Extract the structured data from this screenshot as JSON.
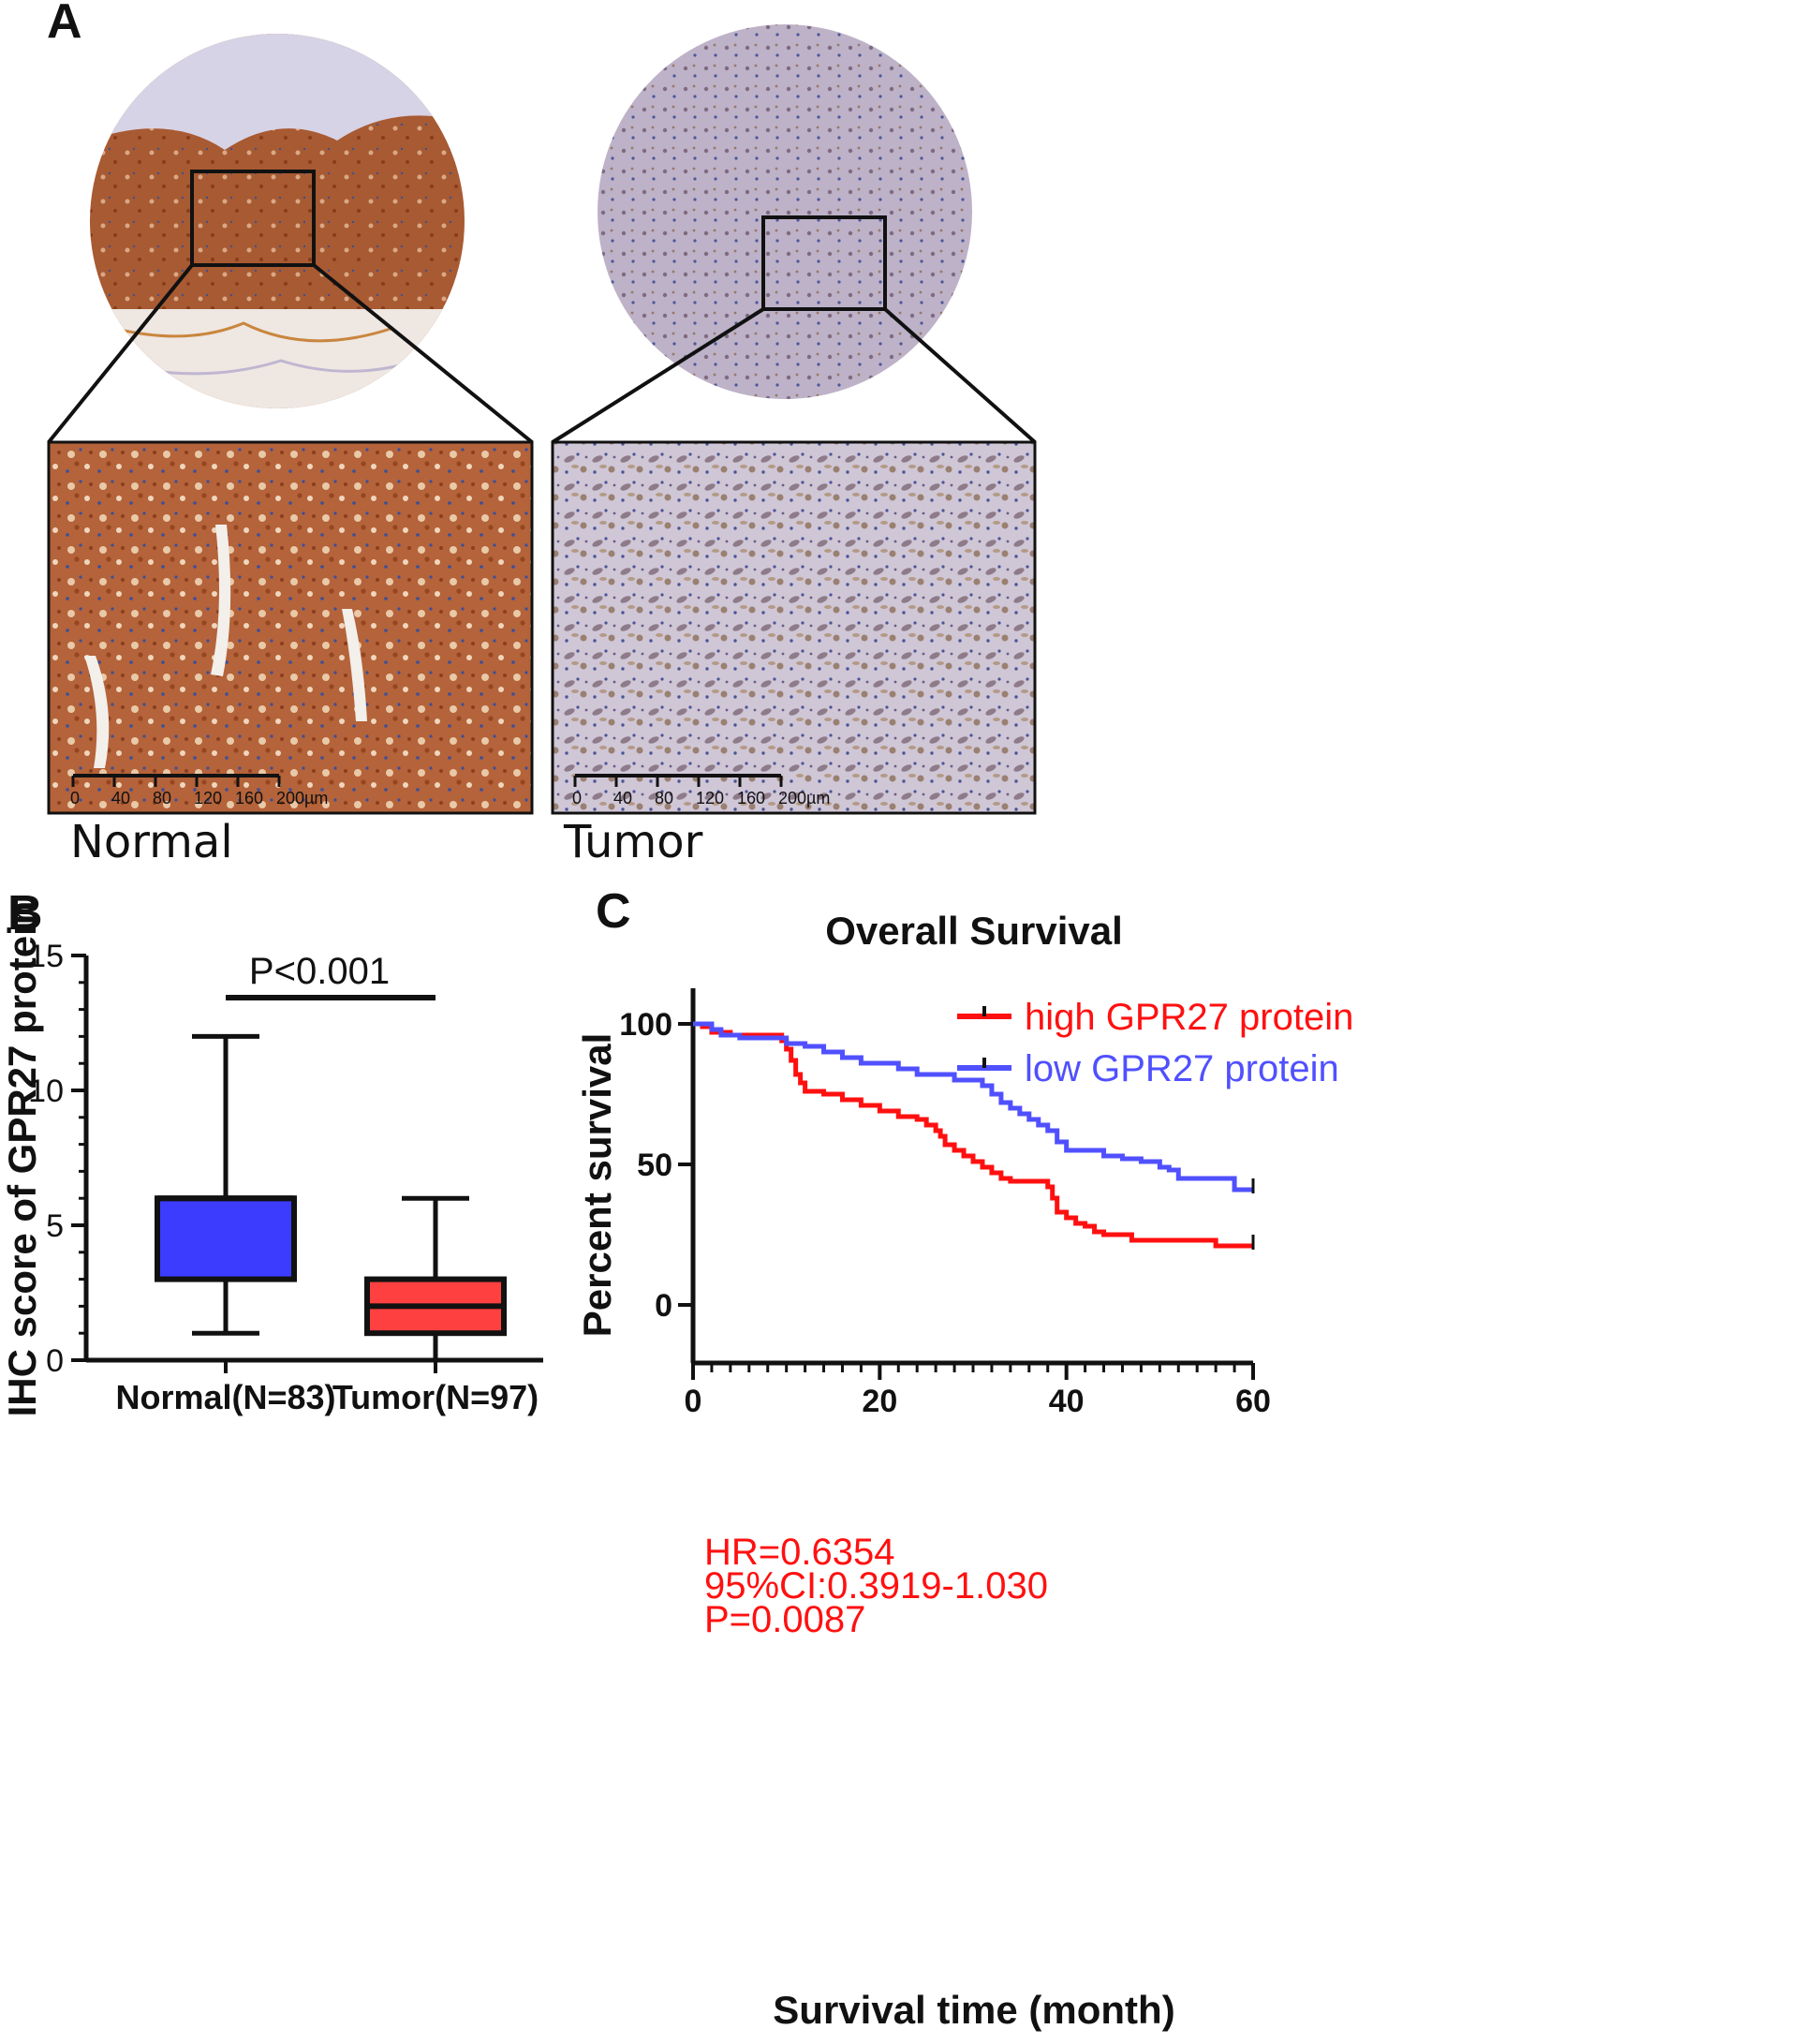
{
  "panel_a": {
    "label": "A",
    "normal_caption": "Normal",
    "tumor_caption": "Tumor",
    "scalebar_ticks": [
      "0",
      "40",
      "80",
      "120",
      "160",
      "200µm"
    ]
  },
  "colors": {
    "normal_box": "#3c3cff",
    "tumor_box": "#ff4040",
    "high": "#ff1010",
    "low": "#5050ff",
    "stain_brown": "#a0522d",
    "stain_purple": "#9a8eb0"
  },
  "chart_data": [
    {
      "id": "B",
      "panel_label": "B",
      "type": "box",
      "ylabel": "IHC score of GPR27 protein",
      "xlabel": "",
      "ylim": [
        0,
        15
      ],
      "yticks": [
        0,
        5,
        10,
        15
      ],
      "annotation": "P<0.001",
      "categories": [
        "Normal(N=83)",
        "Tumor(N=97)"
      ],
      "boxes": [
        {
          "category": "Normal(N=83)",
          "min": 1,
          "q1": 3,
          "median": 6,
          "q3": 6,
          "max": 12,
          "color": "#3c3cff"
        },
        {
          "category": "Tumor(N=97)",
          "min": 0,
          "q1": 1,
          "median": 2,
          "q3": 3,
          "max": 6,
          "color": "#ff4040"
        }
      ]
    },
    {
      "id": "C",
      "panel_label": "C",
      "type": "line",
      "title": "Overall Survival",
      "xlabel": "Survival time (month)",
      "ylabel": "Percent survival",
      "xlim": [
        0,
        60
      ],
      "ylim": [
        0,
        100
      ],
      "xticks": [
        0,
        20,
        40,
        60
      ],
      "yticks": [
        0,
        50,
        100
      ],
      "legend_position": "top-right",
      "series": [
        {
          "name": "high GPR27 protein",
          "color": "#ff1010",
          "x": [
            0,
            1,
            2,
            4,
            9,
            9.5,
            10,
            10.5,
            11,
            11.5,
            12,
            14,
            16,
            18,
            20,
            22,
            24,
            25,
            26,
            26.5,
            27,
            28,
            29,
            30,
            31,
            32,
            33,
            34,
            35,
            36,
            37,
            38,
            38.5,
            39,
            40,
            41,
            42,
            43,
            44,
            45,
            47,
            52,
            56,
            60
          ],
          "y": [
            100,
            99,
            97,
            96,
            96,
            94,
            91,
            87,
            82,
            79,
            76,
            75,
            73,
            71,
            69,
            67,
            66,
            64,
            62,
            60,
            57,
            55,
            53,
            51,
            49,
            47,
            45,
            44,
            44,
            44,
            44,
            42,
            38,
            33,
            31,
            29,
            28,
            26,
            25,
            25,
            23,
            23,
            21,
            21
          ]
        },
        {
          "name": "low GPR27 protein",
          "color": "#5050ff",
          "x": [
            0,
            2,
            3,
            5,
            8,
            10,
            12,
            14,
            16,
            18,
            20,
            22,
            24,
            26,
            28,
            30,
            31,
            32,
            33,
            34,
            35,
            36,
            37,
            38,
            39,
            40,
            42,
            43,
            44,
            45,
            46,
            48,
            50,
            51,
            52,
            57,
            58,
            60
          ],
          "y": [
            100,
            98,
            96,
            95,
            95,
            93,
            92,
            90,
            88,
            86,
            86,
            84,
            82,
            82,
            80,
            80,
            78,
            75,
            72,
            70,
            68,
            66,
            64,
            62,
            58,
            55,
            55,
            55,
            53,
            53,
            52,
            51,
            49,
            48,
            45,
            45,
            41,
            41
          ]
        }
      ],
      "annotations": [
        "HR=0.6354",
        "95%CI:0.3919-1.030",
        "P=0.0087"
      ]
    }
  ]
}
